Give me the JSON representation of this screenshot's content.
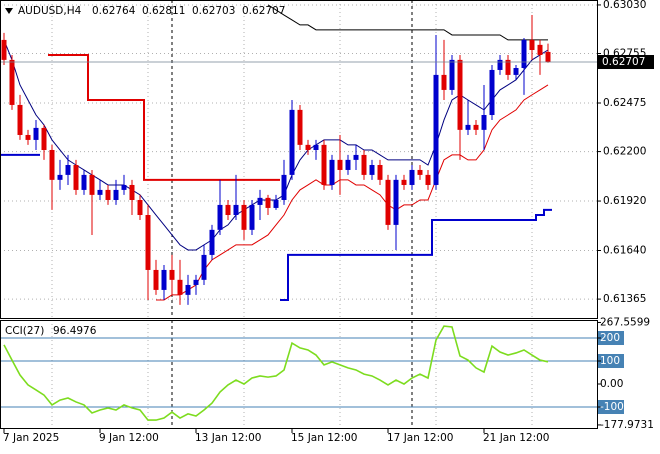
{
  "chart_data": [
    {
      "type": "candlestick",
      "title": "AUDUSD,H4",
      "categories": [
        "7 Jan 2025",
        null,
        null,
        null,
        null,
        null,
        null,
        null,
        null,
        null,
        null,
        null,
        "9 Jan 12:00",
        null,
        null,
        null,
        null,
        null,
        null,
        null,
        null,
        null,
        null,
        null,
        "13 Jan 12:00",
        null,
        null,
        null,
        null,
        null,
        null,
        null,
        null,
        null,
        null,
        null,
        "15 Jan 12:00",
        null,
        null,
        null,
        null,
        null,
        null,
        null,
        null,
        null,
        null,
        null,
        "17 Jan 12:00",
        null,
        null,
        null,
        null,
        null,
        null,
        null,
        null,
        null,
        null,
        null,
        "21 Jan 12:00",
        null,
        null,
        null,
        null,
        null,
        null,
        null,
        null
      ],
      "open": [
        0.62832,
        0.62719,
        0.62464,
        0.62294,
        0.62266,
        0.62334,
        0.62209,
        0.6204,
        0.62068,
        0.62124,
        0.61983,
        0.62068,
        0.61955,
        0.61983,
        0.61926,
        0.61983,
        0.62011,
        0.61926,
        0.61841,
        0.6153,
        0.61417,
        0.6153,
        0.61474,
        0.61389,
        0.61445,
        0.61474,
        0.61615,
        0.61757,
        0.61898,
        0.61841,
        0.61898,
        0.61757,
        0.61898,
        0.61938,
        0.61881,
        0.61926,
        0.62068,
        0.62436,
        0.62238,
        0.62209,
        0.62238,
        0.62011,
        0.62153,
        0.62096,
        0.62153,
        0.62181,
        0.62068,
        0.62124,
        0.6204,
        0.61785,
        0.6204,
        0.62011,
        0.62096,
        0.62068,
        0.62011,
        0.62634,
        0.62549,
        0.62719,
        0.62323,
        0.62351,
        0.62323,
        0.62407,
        0.62662,
        0.62719,
        0.62634,
        0.62673,
        0.62832,
        0.62804,
        0.62764
      ],
      "high": [
        0.62872,
        0.62747,
        0.62521,
        0.62323,
        0.62379,
        0.62351,
        0.62238,
        0.62153,
        0.62181,
        0.62153,
        0.62096,
        0.62096,
        0.6204,
        0.62011,
        0.6204,
        0.62068,
        0.6204,
        0.61955,
        0.61898,
        0.61587,
        0.61558,
        0.61615,
        0.61587,
        0.61502,
        0.61502,
        0.61672,
        0.61785,
        0.6204,
        0.61926,
        0.62068,
        0.61926,
        0.61926,
        0.61983,
        0.61955,
        0.61955,
        0.62153,
        0.62492,
        0.62464,
        0.62266,
        0.62266,
        0.62266,
        0.62181,
        0.62294,
        0.62181,
        0.62238,
        0.62209,
        0.62153,
        0.62153,
        0.62068,
        0.62068,
        0.62068,
        0.62124,
        0.62124,
        0.62096,
        0.6286,
        0.62832,
        0.62747,
        0.62747,
        0.62492,
        0.62379,
        0.62577,
        0.6269,
        0.62747,
        0.62747,
        0.6269,
        0.62843,
        0.62973,
        0.62832,
        0.62811
      ],
      "low": [
        0.6269,
        0.62436,
        0.62266,
        0.62238,
        0.62209,
        0.62153,
        0.6187,
        0.61983,
        0.62011,
        0.61955,
        0.61955,
        0.61728,
        0.61926,
        0.61898,
        0.61898,
        0.61955,
        0.61841,
        0.61813,
        0.6136,
        0.61389,
        0.6136,
        0.61389,
        0.61332,
        0.61332,
        0.61389,
        0.61445,
        0.61587,
        0.61728,
        0.61813,
        0.61813,
        0.617,
        0.61728,
        0.61813,
        0.61841,
        0.6187,
        0.61898,
        0.6204,
        0.62209,
        0.62181,
        0.62153,
        0.61983,
        0.61983,
        0.61955,
        0.62068,
        0.62096,
        0.6204,
        0.6204,
        0.62011,
        0.61757,
        0.61643,
        0.61983,
        0.61983,
        0.6204,
        0.61983,
        0.61983,
        0.62492,
        0.62521,
        0.62153,
        0.62294,
        0.62294,
        0.62209,
        0.62379,
        0.62634,
        0.62606,
        0.62606,
        0.62521,
        0.62719,
        0.62634,
        0.62703
      ],
      "close": [
        0.62719,
        0.62464,
        0.62294,
        0.62266,
        0.62334,
        0.62209,
        0.6204,
        0.62068,
        0.62124,
        0.61983,
        0.62068,
        0.61955,
        0.61983,
        0.61926,
        0.61983,
        0.62011,
        0.61926,
        0.61841,
        0.6153,
        0.61417,
        0.6153,
        0.61474,
        0.61389,
        0.61445,
        0.61474,
        0.61615,
        0.61757,
        0.61898,
        0.61841,
        0.61898,
        0.61757,
        0.61898,
        0.61938,
        0.61881,
        0.61926,
        0.62068,
        0.62436,
        0.62238,
        0.62209,
        0.62238,
        0.62011,
        0.62153,
        0.62096,
        0.62153,
        0.62181,
        0.62068,
        0.62124,
        0.6204,
        0.61785,
        0.6204,
        0.62011,
        0.62096,
        0.62068,
        0.62011,
        0.62634,
        0.62549,
        0.62719,
        0.62323,
        0.62351,
        0.62323,
        0.62407,
        0.62662,
        0.62719,
        0.62634,
        0.62673,
        0.62832,
        0.62775,
        0.62747,
        0.62707
      ],
      "up_color": "#0000cd",
      "down_color": "#e00000",
      "series": [
        {
          "color": "#000080",
          "values": [
            0.62832,
            0.62719,
            0.62577,
            0.62492,
            0.62407,
            0.62351,
            0.62266,
            0.62209,
            0.62153,
            0.62124,
            0.62096,
            0.62068,
            0.6204,
            0.62011,
            0.62011,
            0.62011,
            0.61983,
            0.61955,
            0.61898,
            0.61841,
            0.61785,
            0.61728,
            0.61672,
            0.61643,
            0.61643,
            0.61672,
            0.617,
            0.61757,
            0.61785,
            0.61841,
            0.6187,
            0.61898,
            0.61926,
            0.61926,
            0.61926,
            0.61955,
            0.62068,
            0.62153,
            0.62209,
            0.62238,
            0.62266,
            0.62266,
            0.62266,
            0.62238,
            0.62238,
            0.62209,
            0.62209,
            0.62181,
            0.62153,
            0.62153,
            0.62153,
            0.62153,
            0.62153,
            0.62124,
            0.62238,
            0.62379,
            0.62492,
            0.62521,
            0.62492,
            0.62464,
            0.62436,
            0.62492,
            0.62549,
            0.62577,
            0.62606,
            0.62662,
            0.62719,
            0.62747,
            0.62775
          ]
        },
        {
          "color": "#e00000",
          "values": [
            null,
            null,
            null,
            null,
            null,
            null,
            null,
            null,
            null,
            null,
            null,
            null,
            null,
            null,
            null,
            null,
            null,
            null,
            null,
            0.6136,
            0.6136,
            0.61389,
            0.61389,
            0.61417,
            0.61445,
            0.6153,
            0.61587,
            0.61615,
            0.61643,
            0.61672,
            0.61672,
            0.61672,
            0.617,
            0.61728,
            0.61785,
            0.61841,
            0.61926,
            0.61983,
            0.62011,
            0.6204,
            0.62011,
            0.62011,
            0.6204,
            0.6204,
            0.62011,
            0.62011,
            0.61983,
            0.61955,
            0.61898,
            0.6187,
            0.61898,
            0.61898,
            0.61926,
            0.61926,
            0.6204,
            0.62153,
            0.62181,
            0.62181,
            0.62153,
            0.62153,
            0.62209,
            0.62323,
            0.62379,
            0.62407,
            0.62436,
            0.62492,
            0.62521,
            0.62549,
            0.62577
          ]
        },
        {
          "color": "#000000",
          "values": [
            null,
            null,
            null,
            null,
            null,
            null,
            null,
            null,
            null,
            null,
            null,
            null,
            null,
            null,
            null,
            null,
            null,
            null,
            null,
            null,
            null,
            null,
            null,
            null,
            null,
            null,
            null,
            null,
            null,
            null,
            null,
            null,
            null,
            0.6303,
            0.63002,
            0.62973,
            0.62945,
            0.62917,
            0.62917,
            0.62889,
            0.62889,
            0.62889,
            0.62889,
            0.62889,
            0.62889,
            0.62889,
            0.62889,
            0.62889,
            0.62889,
            0.62889,
            0.62889,
            0.62889,
            0.62889,
            0.62889,
            0.62889,
            0.62889,
            0.6286,
            0.6286,
            0.6286,
            0.6286,
            0.6286,
            0.6286,
            0.6286,
            0.62832,
            0.62832,
            0.62832,
            0.62832,
            0.62832,
            0.62832
          ]
        },
        {
          "color": "#e00000",
          "step": true,
          "values": [
            null,
            null,
            null,
            null,
            null,
            null,
            0.62747,
            0.62747,
            0.62747,
            0.62747,
            0.62747,
            0.62492,
            0.62492,
            0.62492,
            0.62492,
            0.62492,
            0.62492,
            0.62492,
            0.6204,
            0.6204,
            0.6204,
            0.6204,
            0.6204,
            0.6204,
            0.6204,
            0.6204,
            0.6204,
            0.6204,
            0.6204,
            0.6204,
            0.6204,
            0.6204,
            0.6204,
            0.6204,
            0.6204,
            null,
            null,
            null,
            null,
            null,
            null,
            null,
            null,
            null,
            null,
            null,
            null,
            null,
            null,
            null,
            null,
            null,
            null,
            null,
            null,
            null,
            null,
            null,
            null,
            null,
            null,
            null,
            null,
            null,
            null,
            null,
            null,
            null,
            null
          ]
        },
        {
          "color": "#0000cd",
          "step": true,
          "values": [
            0.62181,
            0.62181,
            0.62181,
            0.62181,
            0.62181,
            null,
            null,
            null,
            null,
            null,
            null,
            null,
            null,
            null,
            null,
            null,
            null,
            null,
            null,
            null,
            null,
            null,
            null,
            null,
            null,
            null,
            null,
            null,
            null,
            null,
            null,
            null,
            null,
            null,
            null,
            0.6136,
            0.61615,
            0.61615,
            0.61615,
            0.61615,
            0.61615,
            0.61615,
            0.61615,
            0.61615,
            0.61615,
            0.61615,
            0.61615,
            0.61615,
            0.61615,
            0.61615,
            0.61615,
            0.61615,
            0.61615,
            0.61615,
            0.61813,
            0.61813,
            0.61813,
            0.61813,
            0.61813,
            0.61813,
            0.61813,
            0.61813,
            0.61813,
            0.61813,
            0.61813,
            0.61813,
            0.61813,
            0.61841,
            0.6187
          ]
        }
      ],
      "ylim": [
        0.63058,
        0.61258
      ],
      "yticks": [
        {
          "value": 0.6303,
          "label": "0.63030"
        },
        0.62755,
        0.62475,
        {
          "value": 0.622,
          "label": "0.62200"
        },
        {
          "value": 0.6192,
          "label": "0.61920"
        },
        {
          "value": 0.6164,
          "label": "0.61640"
        },
        0.61365
      ],
      "grid": true
    },
    {
      "type": "line",
      "title": "CCI(27)",
      "color": "#7ddc1f",
      "values": [
        170,
        104,
        39,
        -4,
        -26,
        -48,
        -91,
        -70,
        -61,
        -78,
        -91,
        -126,
        -113,
        -104,
        -113,
        -91,
        -104,
        -113,
        -157,
        -157,
        -148,
        -122,
        -148,
        -130,
        -139,
        -113,
        -83,
        -35,
        -4,
        17,
        0,
        26,
        35,
        30,
        35,
        61,
        178,
        157,
        148,
        126,
        83,
        96,
        83,
        70,
        61,
        43,
        35,
        17,
        -4,
        17,
        0,
        26,
        43,
        26,
        191,
        252,
        248,
        122,
        104,
        70,
        52,
        165,
        139,
        126,
        135,
        148,
        126,
        104,
        96.4976
      ],
      "ylim": [
        278.3,
        -191.3
      ],
      "yticks": [
        267.5599,
        200,
        100,
        {
          "value": 0,
          "label": "0.00"
        },
        -100,
        -177.9731
      ]
    }
  ]
}
